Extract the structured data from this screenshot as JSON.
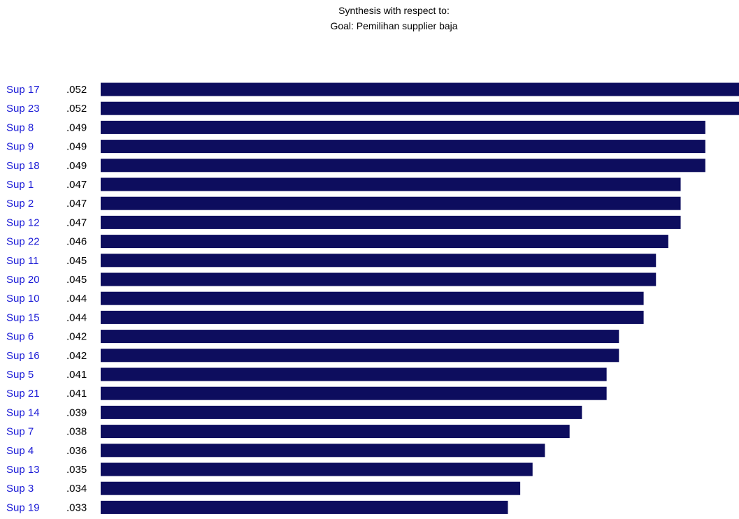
{
  "chart_data": {
    "type": "bar",
    "orientation": "horizontal",
    "title": "Synthesis with respect to:",
    "subtitle": "Goal: Pemilihan supplier baja",
    "categories": [
      "Sup 17",
      "Sup 23",
      "Sup 8",
      "Sup 9",
      "Sup 18",
      "Sup 1",
      "Sup 2",
      "Sup 12",
      "Sup 22",
      "Sup 11",
      "Sup 20",
      "Sup 10",
      "Sup 15",
      "Sup 6",
      "Sup 16",
      "Sup 5",
      "Sup 21",
      "Sup 14",
      "Sup 7",
      "Sup 4",
      "Sup 13",
      "Sup 3",
      "Sup 19"
    ],
    "values": [
      0.052,
      0.052,
      0.049,
      0.049,
      0.049,
      0.047,
      0.047,
      0.047,
      0.046,
      0.045,
      0.045,
      0.044,
      0.044,
      0.042,
      0.042,
      0.041,
      0.041,
      0.039,
      0.038,
      0.036,
      0.035,
      0.034,
      0.033
    ],
    "value_labels": [
      ".052",
      ".052",
      ".049",
      ".049",
      ".049",
      ".047",
      ".047",
      ".047",
      ".046",
      ".045",
      ".045",
      ".044",
      ".044",
      ".042",
      ".042",
      ".041",
      ".041",
      ".039",
      ".038",
      ".036",
      ".035",
      ".034",
      ".033"
    ],
    "grid": false,
    "legend": "none",
    "colors": {
      "bar": "#0d0d5e",
      "category_label": "#1a1ad6",
      "value_label": "#000000"
    }
  }
}
